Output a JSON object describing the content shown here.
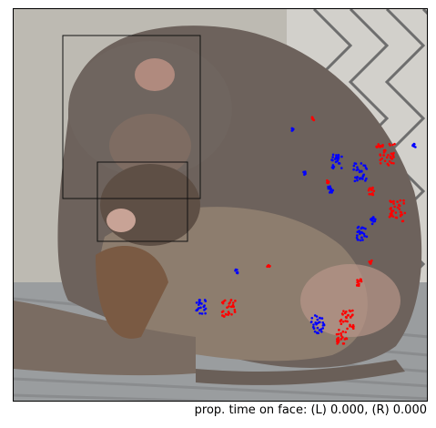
{
  "image": {
    "subject": "monkey-with-infant",
    "face_boxes": [
      "adult-face-box",
      "infant-face-box"
    ]
  },
  "gaze": {
    "left_eye_color": "#0000ff",
    "right_eye_color": "#ff0000"
  },
  "caption": "prop. time on face: (L) 0.000, (R) 0.000",
  "colors": {
    "background": "#bdbab2",
    "fence": "#6e6e6e",
    "fur": "#6d625c",
    "fur_light": "#8d7d6e",
    "skin": "#b89589"
  }
}
